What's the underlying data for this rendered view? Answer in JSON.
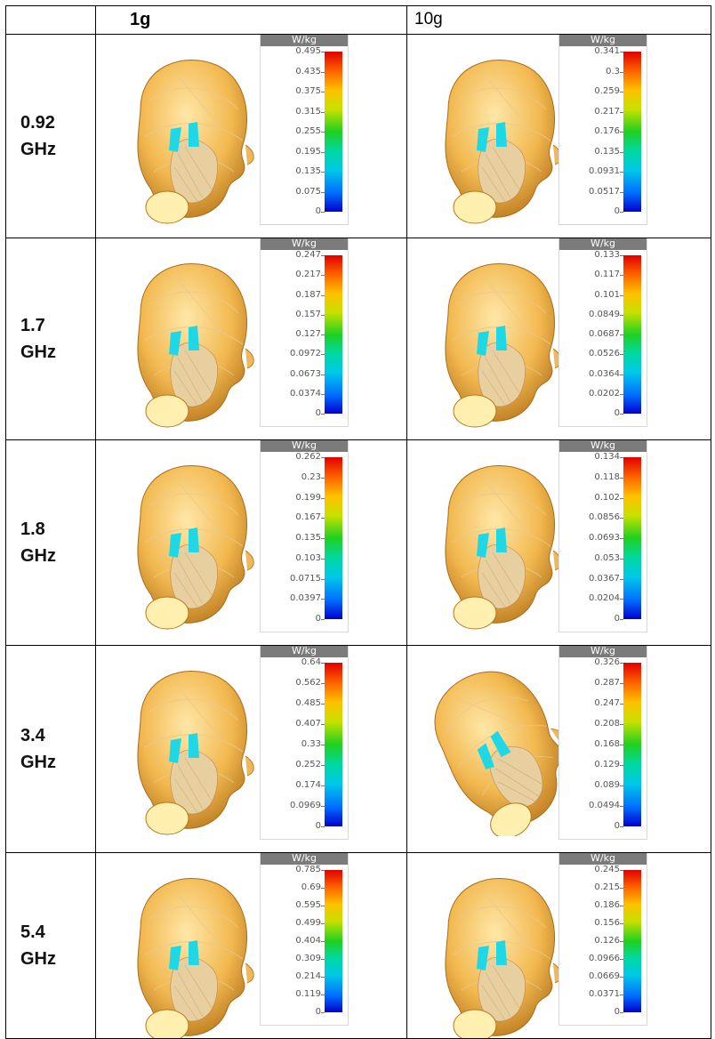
{
  "columns": [
    "",
    "1g",
    "10g"
  ],
  "unit": "W/kg",
  "rows": [
    {
      "freq": [
        "0.92",
        "GHz"
      ],
      "scales": [
        [
          "0.495",
          "0.435",
          "0.375",
          "0.315",
          "0.255",
          "0.195",
          "0.135",
          "0.075",
          "0"
        ],
        [
          "0.341",
          "0.3",
          "0.259",
          "0.217",
          "0.176",
          "0.135",
          "0.0931",
          "0.0517",
          "0"
        ]
      ]
    },
    {
      "freq": [
        "1.7",
        "GHz"
      ],
      "scales": [
        [
          "0.247",
          "0.217",
          "0.187",
          "0.157",
          "0.127",
          "0.0972",
          "0.0673",
          "0.0374",
          "0"
        ],
        [
          "0.133",
          "0.117",
          "0.101",
          "0.0849",
          "0.0687",
          "0.0526",
          "0.0364",
          "0.0202",
          "0"
        ]
      ]
    },
    {
      "freq": [
        "1.8",
        "GHz"
      ],
      "scales": [
        [
          "0.262",
          "0.23",
          "0.199",
          "0.167",
          "0.135",
          "0.103",
          "0.0715",
          "0.0397",
          "0"
        ],
        [
          "0.134",
          "0.118",
          "0.102",
          "0.0856",
          "0.0693",
          "0.053",
          "0.0367",
          "0.0204",
          "0"
        ]
      ]
    },
    {
      "freq": [
        "3.4",
        "GHz"
      ],
      "scales": [
        [
          "0.64",
          "0.562",
          "0.485",
          "0.407",
          "0.33",
          "0.252",
          "0.174",
          "0.0969",
          "0"
        ],
        [
          "0.326",
          "0.287",
          "0.247",
          "0.208",
          "0.168",
          "0.129",
          "0.089",
          "0.0494",
          "0"
        ]
      ]
    },
    {
      "freq": [
        "5.4",
        "GHz"
      ],
      "scales": [
        [
          "0.785",
          "0.69",
          "0.595",
          "0.499",
          "0.404",
          "0.309",
          "0.214",
          "0.119",
          "0"
        ],
        [
          "0.245",
          "0.215",
          "0.186",
          "0.156",
          "0.126",
          "0.0966",
          "0.0669",
          "0.0371",
          "0"
        ]
      ]
    }
  ]
}
